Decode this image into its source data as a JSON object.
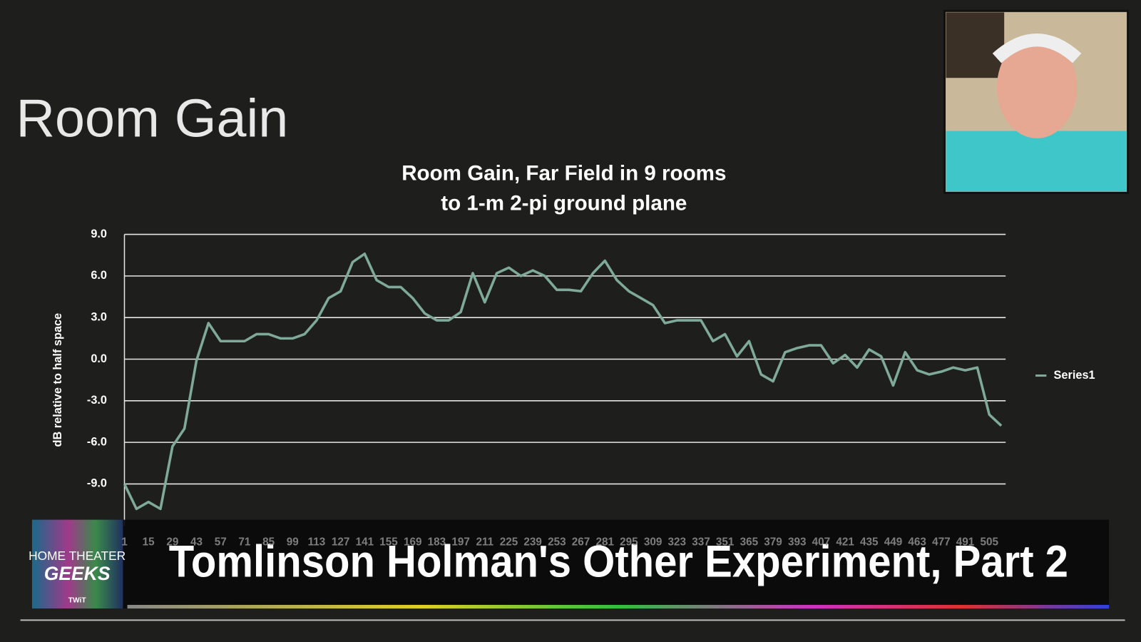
{
  "slide_title": "Room Gain",
  "chart_data": {
    "type": "line",
    "title": [
      "Room Gain, Far Field in 9 rooms",
      "to 1-m 2-pi ground plane"
    ],
    "y_label": "dB relative to half space",
    "categories": [
      "1",
      null,
      "15",
      null,
      "29",
      null,
      "43",
      null,
      "57",
      null,
      "71",
      null,
      "85",
      null,
      "99",
      null,
      "113",
      null,
      "127",
      null,
      "141",
      null,
      "155",
      null,
      "169",
      null,
      "183",
      null,
      "197",
      null,
      "211",
      null,
      "225",
      null,
      "239",
      null,
      "253",
      null,
      "267",
      null,
      "281",
      null,
      "295",
      null,
      "309",
      null,
      "323",
      null,
      "337",
      null,
      "351",
      null,
      "365",
      null,
      "379",
      null,
      "393",
      null,
      "407",
      null,
      "421",
      null,
      "435",
      null,
      "449",
      null,
      "463",
      null,
      "477",
      null,
      "491",
      null,
      "505",
      null
    ],
    "series": [
      {
        "name": "Series1",
        "color": "#7fa99b",
        "values": [
          -9.0,
          -10.8,
          -10.3,
          -10.8,
          -6.3,
          -5.0,
          -0.1,
          2.6,
          1.3,
          1.3,
          1.3,
          1.8,
          1.8,
          1.5,
          1.5,
          1.8,
          2.8,
          4.4,
          4.9,
          7.0,
          7.6,
          5.7,
          5.2,
          5.2,
          4.4,
          3.3,
          2.8,
          2.8,
          3.4,
          6.2,
          4.1,
          6.2,
          6.6,
          6.0,
          6.4,
          6.0,
          5.0,
          5.0,
          4.9,
          6.2,
          7.1,
          5.7,
          4.9,
          4.4,
          3.9,
          2.6,
          2.8,
          2.8,
          2.8,
          1.3,
          1.8,
          0.2,
          1.3,
          -1.1,
          -1.6,
          0.5,
          0.8,
          1.0,
          1.0,
          -0.3,
          0.3,
          -0.6,
          0.7,
          0.2,
          -1.9,
          0.5,
          -0.8,
          -1.1,
          -0.9,
          -0.6,
          -0.8,
          -0.6,
          -4.0,
          -4.8
        ]
      }
    ],
    "ylim": [
      -12,
      9
    ],
    "yticks": [
      {
        "value": -9,
        "label": "-9.0"
      },
      {
        "value": -6,
        "label": "-6.0"
      },
      {
        "value": -3,
        "label": "-3.0"
      },
      {
        "value": 0,
        "label": "0.0"
      },
      {
        "value": 3,
        "label": "3.0"
      },
      {
        "value": 6,
        "label": "6.0"
      },
      {
        "value": 9,
        "label": "9.0"
      }
    ],
    "grid": true,
    "legend": "right"
  },
  "banner": {
    "title": "Tomlinson Holman's Other Experiment, Part 2",
    "logo": [
      "HOME THEATER",
      "GEEKS",
      "TWiT"
    ]
  }
}
